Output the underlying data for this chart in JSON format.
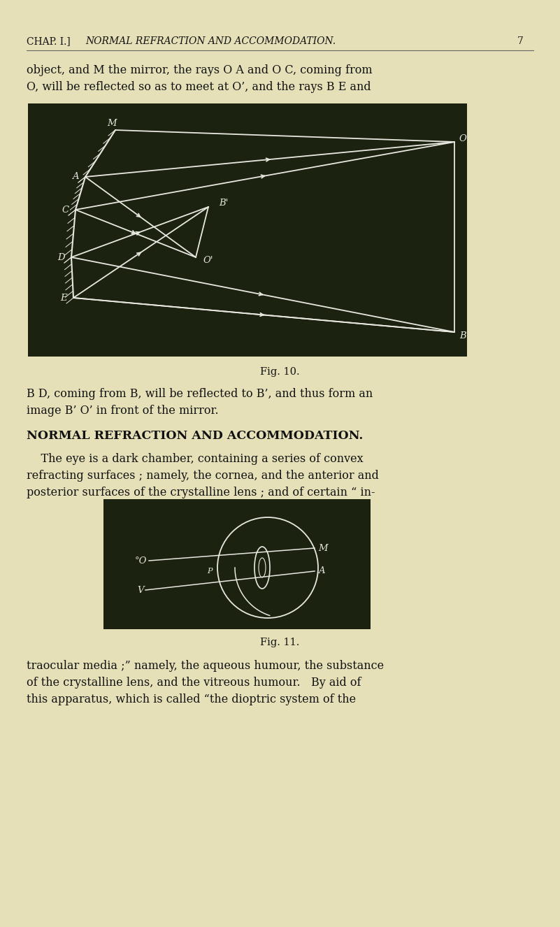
{
  "bg_color": "#e5e0b8",
  "header_text": "CHAP. I.]",
  "header_italic": "NORMAL REFRACTION AND ACCOMMODATION.",
  "header_num": "7",
  "para1_lines": [
    "object, and M the mirror, the rays O A and O C, coming from",
    "O, will be reflected so as to meet at O’, and the rays B E and"
  ],
  "fig10_caption": "Fig. 10.",
  "para2_line1": "B D, coming from B, will be reflected to B’, and thus form an",
  "para2_line2": "image B’ O’ in front of the mirror.",
  "section_title": "NORMAL REFRACTION AND ACCOMMODATION.",
  "para3_line1": "    The eye is a dark chamber, containing a series of convex",
  "para3_line2": "refracting surfaces ; namely, the cornea, and the anterior and",
  "para3_line3": "posterior surfaces of the crystalline lens ; and of certain “ in-",
  "fig11_caption": "Fig. 11.",
  "para4_line1": "traocular media ;” namely, the aqueous humour, the substance",
  "para4_line2": "of the crystalline lens, and the vitreous humour.   By aid of",
  "para4_line3": "this apparatus, which is called “the dioptric system of the",
  "fig10_bg": "#1c2210",
  "fig11_bg": "#1c2210",
  "white": "#e8e8e0",
  "text_color": "#111111"
}
